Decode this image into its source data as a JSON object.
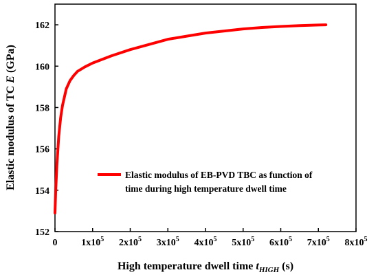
{
  "chart_data": {
    "type": "line",
    "title": "",
    "xlabel": {
      "main": "High temperature dwell time ",
      "italic": "t",
      "subscript": "HIGH",
      "suffix": " (s)"
    },
    "ylabel": {
      "main": "Elastic modulus of TC ",
      "italic": "E",
      "suffix": " (GPa)"
    },
    "xlim": [
      0,
      800000
    ],
    "ylim": [
      152,
      163
    ],
    "x_ticks": [
      {
        "value": 0,
        "mantissa": "0",
        "exponent": ""
      },
      {
        "value": 100000,
        "mantissa": "1x10",
        "exponent": "5"
      },
      {
        "value": 200000,
        "mantissa": "2x10",
        "exponent": "5"
      },
      {
        "value": 300000,
        "mantissa": "3x10",
        "exponent": "5"
      },
      {
        "value": 400000,
        "mantissa": "4x10",
        "exponent": "5"
      },
      {
        "value": 500000,
        "mantissa": "5x10",
        "exponent": "5"
      },
      {
        "value": 600000,
        "mantissa": "6x10",
        "exponent": "5"
      },
      {
        "value": 700000,
        "mantissa": "7x10",
        "exponent": "5"
      },
      {
        "value": 800000,
        "mantissa": "8x10",
        "exponent": "5"
      }
    ],
    "y_ticks": [
      152,
      154,
      156,
      158,
      160,
      162
    ],
    "series": [
      {
        "name": "Elastic modulus of EB-PVD TBC as function of time during high temperature dwell time",
        "color": "#ff0000",
        "x": [
          0,
          2000,
          5000,
          10000,
          15000,
          20000,
          30000,
          40000,
          50000,
          60000,
          80000,
          100000,
          150000,
          200000,
          250000,
          300000,
          350000,
          400000,
          450000,
          500000,
          550000,
          600000,
          650000,
          700000,
          720000
        ],
        "y": [
          152.9,
          154.0,
          155.2,
          156.6,
          157.5,
          158.1,
          158.9,
          159.3,
          159.55,
          159.75,
          159.97,
          160.15,
          160.5,
          160.8,
          161.05,
          161.3,
          161.45,
          161.6,
          161.7,
          161.8,
          161.87,
          161.92,
          161.96,
          161.99,
          162.0
        ]
      }
    ],
    "legend": {
      "position": "lower-right",
      "lines": [
        "Elastic modulus of EB-PVD TBC as function of",
        "time during high temperature dwell time"
      ]
    },
    "grid": false
  }
}
